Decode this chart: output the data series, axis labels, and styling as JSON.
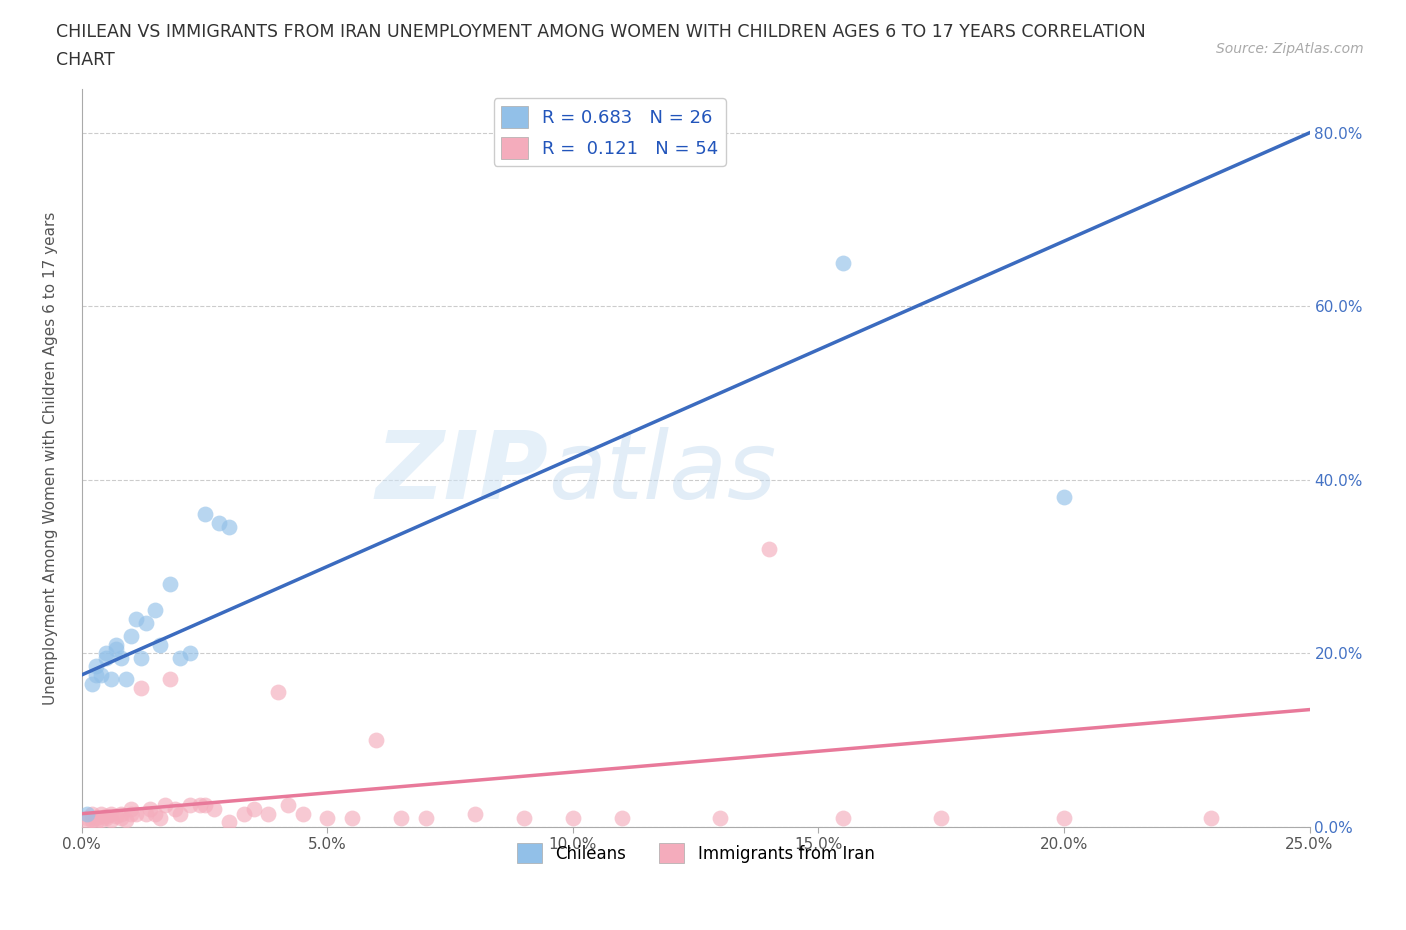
{
  "title_line1": "CHILEAN VS IMMIGRANTS FROM IRAN UNEMPLOYMENT AMONG WOMEN WITH CHILDREN AGES 6 TO 17 YEARS CORRELATION",
  "title_line2": "CHART",
  "source": "Source: ZipAtlas.com",
  "ylabel": "Unemployment Among Women with Children Ages 6 to 17 years",
  "xlim": [
    0.0,
    0.25
  ],
  "ylim": [
    0.0,
    0.85
  ],
  "xticks": [
    0.0,
    0.05,
    0.1,
    0.15,
    0.2,
    0.25
  ],
  "yticks": [
    0.0,
    0.2,
    0.4,
    0.6,
    0.8
  ],
  "chileans_R": 0.683,
  "chileans_N": 26,
  "iran_R": 0.121,
  "iran_N": 54,
  "chilean_color": "#92c0e8",
  "iran_color": "#f4acbc",
  "chilean_line_color": "#3b6bbf",
  "iran_line_color": "#e8799a",
  "background_color": "#ffffff",
  "chilean_trend_x0": 0.0,
  "chilean_trend_y0": 0.175,
  "chilean_trend_x1": 0.25,
  "chilean_trend_y1": 0.8,
  "iran_trend_x0": 0.0,
  "iran_trend_y0": 0.015,
  "iran_trend_x1": 0.25,
  "iran_trend_y1": 0.135,
  "chileans_x": [
    0.001,
    0.002,
    0.003,
    0.003,
    0.004,
    0.005,
    0.005,
    0.006,
    0.007,
    0.007,
    0.008,
    0.009,
    0.01,
    0.011,
    0.012,
    0.013,
    0.015,
    0.016,
    0.018,
    0.02,
    0.022,
    0.025,
    0.028,
    0.03,
    0.155,
    0.2
  ],
  "chileans_y": [
    0.015,
    0.165,
    0.175,
    0.185,
    0.175,
    0.195,
    0.2,
    0.17,
    0.205,
    0.21,
    0.195,
    0.17,
    0.22,
    0.24,
    0.195,
    0.235,
    0.25,
    0.21,
    0.28,
    0.195,
    0.2,
    0.36,
    0.35,
    0.345,
    0.65,
    0.38
  ],
  "iran_x": [
    0.001,
    0.001,
    0.002,
    0.002,
    0.003,
    0.003,
    0.004,
    0.004,
    0.005,
    0.005,
    0.006,
    0.006,
    0.007,
    0.008,
    0.008,
    0.009,
    0.01,
    0.01,
    0.011,
    0.012,
    0.013,
    0.014,
    0.015,
    0.016,
    0.017,
    0.018,
    0.019,
    0.02,
    0.022,
    0.024,
    0.025,
    0.027,
    0.03,
    0.033,
    0.035,
    0.038,
    0.04,
    0.042,
    0.045,
    0.05,
    0.055,
    0.06,
    0.065,
    0.07,
    0.08,
    0.09,
    0.1,
    0.11,
    0.13,
    0.14,
    0.155,
    0.175,
    0.2,
    0.23
  ],
  "iran_y": [
    0.005,
    0.01,
    0.008,
    0.015,
    0.005,
    0.01,
    0.008,
    0.015,
    0.01,
    0.012,
    0.008,
    0.015,
    0.012,
    0.01,
    0.015,
    0.008,
    0.015,
    0.02,
    0.015,
    0.16,
    0.015,
    0.02,
    0.015,
    0.01,
    0.025,
    0.17,
    0.02,
    0.015,
    0.025,
    0.025,
    0.025,
    0.02,
    0.005,
    0.015,
    0.02,
    0.015,
    0.155,
    0.025,
    0.015,
    0.01,
    0.01,
    0.1,
    0.01,
    0.01,
    0.015,
    0.01,
    0.01,
    0.01,
    0.01,
    0.32,
    0.01,
    0.01,
    0.01,
    0.01
  ]
}
